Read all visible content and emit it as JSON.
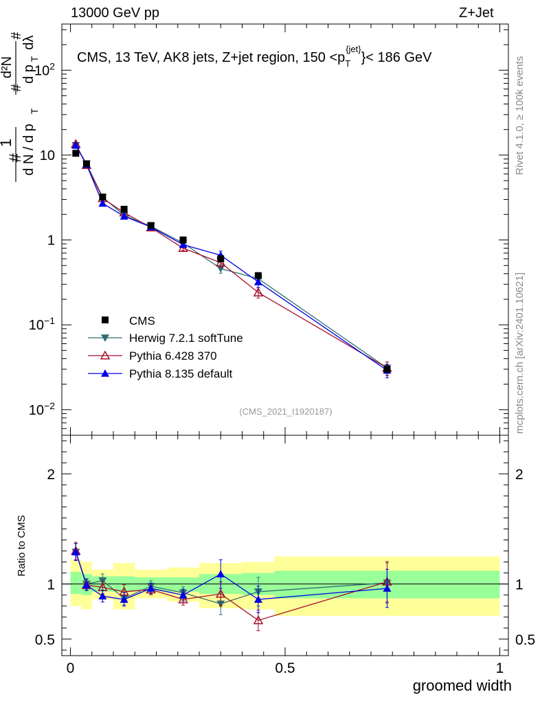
{
  "header": {
    "left": "13000 GeV pp",
    "right": "Z+Jet"
  },
  "sidebar": {
    "rivet": "Rivet 4.1.0, ≥ 100k events",
    "mcplots": "mcplots.cern.ch [arXiv:2401.10621]"
  },
  "chart_data": {
    "type": "line",
    "title": "CMS, 13 TeV, AK8 jets, Z+jet region, 150 <p",
    "title_sup": "{jet}",
    "title_sub": "T",
    "title_end": "}< 186 GeV",
    "analysis": "(CMS_2021_I1920187)",
    "xlabel": "groomed width",
    "ylabel_main": {
      "num": "d²N",
      "den": "d p",
      "sub": "T",
      "tail": "dλ",
      "prefix": "1",
      "prefix_den": "d N / d p",
      "hash": "#"
    },
    "ylabel_ratio": "Ratio to CMS",
    "xlim": [
      -0.02,
      1.02
    ],
    "ylim_log": [
      0.005,
      350
    ],
    "ratio_ylim": [
      0.35,
      2.35
    ],
    "x_ticks": [
      "0",
      "0.5",
      "1"
    ],
    "y_ticks": [
      "10⁻²",
      "10⁻¹",
      "1",
      "10",
      "10²"
    ],
    "ratio_ticks": [
      "0.5",
      "1",
      "2"
    ],
    "bin_edges": [
      0.0,
      0.025,
      0.05,
      0.1,
      0.15,
      0.225,
      0.3,
      0.4,
      0.475,
      1.0
    ],
    "data": {
      "name": "CMS",
      "x": [
        0.0125,
        0.0375,
        0.075,
        0.125,
        0.1875,
        0.2625,
        0.35,
        0.4375,
        0.7375
      ],
      "y": [
        10.5,
        7.9,
        3.2,
        2.3,
        1.48,
        1.0,
        0.6,
        0.38,
        0.03
      ]
    },
    "series": [
      {
        "name": "Herwig 7.2.1 softTune",
        "color": "#2d6e72",
        "marker": "triangle-down",
        "x": [
          0.0125,
          0.0375,
          0.075,
          0.125,
          0.1875,
          0.2625,
          0.35,
          0.4375,
          0.7375
        ],
        "y": [
          13.0,
          7.9,
          3.2,
          1.95,
          1.45,
          0.92,
          0.46,
          0.35,
          0.031
        ],
        "ratio": [
          1.29,
          1.0,
          1.03,
          0.87,
          0.98,
          0.92,
          0.82,
          0.93,
          1.01
        ]
      },
      {
        "name": "Pythia 6.428 370",
        "color": "#a50f2b",
        "marker": "triangle-open",
        "x": [
          0.0125,
          0.0375,
          0.075,
          0.125,
          0.1875,
          0.2625,
          0.35,
          0.4375,
          0.7375
        ],
        "y": [
          13.5,
          7.6,
          3.1,
          2.1,
          1.4,
          0.8,
          0.54,
          0.24,
          0.031
        ],
        "ratio": [
          1.3,
          0.99,
          0.97,
          0.93,
          0.95,
          0.86,
          0.91,
          0.67,
          1.02
        ]
      },
      {
        "name": "Pythia 8.135 default",
        "color": "#0000e6",
        "marker": "triangle-up",
        "x": [
          0.0125,
          0.0375,
          0.075,
          0.125,
          0.1875,
          0.2625,
          0.35,
          0.4375,
          0.7375
        ],
        "y": [
          13.0,
          7.7,
          2.7,
          1.9,
          1.42,
          0.88,
          0.66,
          0.32,
          0.029
        ],
        "ratio": [
          1.29,
          0.99,
          0.89,
          0.86,
          0.96,
          0.9,
          1.09,
          0.86,
          0.96
        ]
      }
    ],
    "ratio_band_inner": [
      [
        0.91,
        1.11
      ],
      [
        0.9,
        1.09
      ],
      [
        0.93,
        1.07
      ],
      [
        0.93,
        1.07
      ],
      [
        0.94,
        1.06
      ],
      [
        0.93,
        1.06
      ],
      [
        0.91,
        1.09
      ],
      [
        0.9,
        1.1
      ],
      [
        0.87,
        1.12
      ]
    ],
    "ratio_band_outer": [
      [
        0.8,
        1.22
      ],
      [
        0.77,
        1.2
      ],
      [
        0.86,
        1.13
      ],
      [
        0.77,
        1.19
      ],
      [
        0.87,
        1.13
      ],
      [
        0.84,
        1.15
      ],
      [
        0.78,
        1.19
      ],
      [
        0.77,
        1.2
      ],
      [
        0.71,
        1.25
      ]
    ]
  }
}
